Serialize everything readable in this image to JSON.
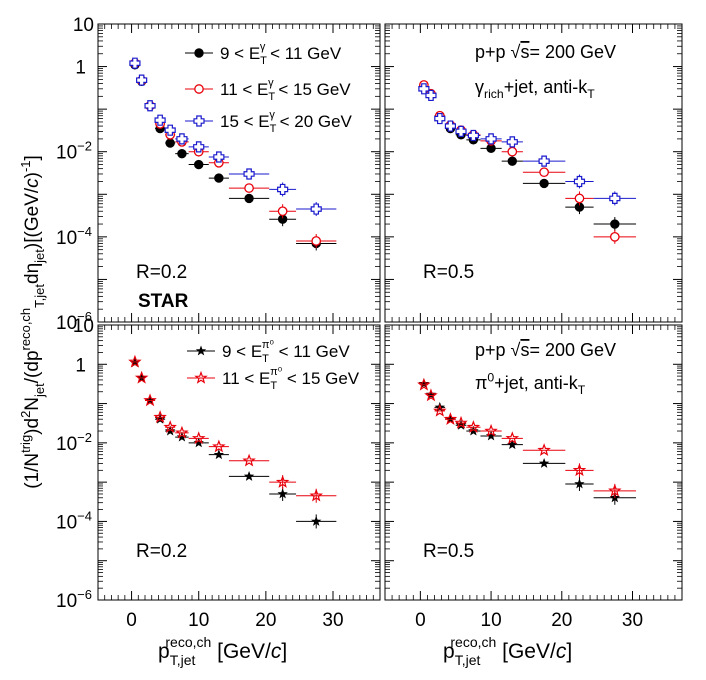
{
  "figure": {
    "ylabel": "(1/N^trig)d²N_jet/(dp_T,jet^reco,ch dη_jet)[(GeV/c)⁻¹]",
    "xlabel": "p_T,jet^reco,ch [GeV/c]",
    "star_label": "STAR",
    "colors": {
      "black": "#000000",
      "red": "#e8000b",
      "blue": "#1a1acd"
    }
  },
  "chart_data": [
    {
      "type": "scatter",
      "panel": "top-left",
      "annotation": "R=0.2",
      "legend_position": "top-right",
      "xlim": [
        -5,
        37
      ],
      "ylim": [
        1e-06,
        10
      ],
      "yscale": "log",
      "series": [
        {
          "name": "9 < E_T^γ < 11 GeV",
          "marker": "circle-filled",
          "color": "#000000",
          "x": [
            0.5,
            1.5,
            2.75,
            4.25,
            5.75,
            7.5,
            10.0,
            13.0,
            17.5,
            22.5,
            27.5
          ],
          "y": [
            1.1,
            0.45,
            0.12,
            0.035,
            0.016,
            0.009,
            0.005,
            0.0024,
            0.0008,
            0.00026,
            7e-05
          ]
        },
        {
          "name": "11 < E_T^γ < 15 GeV",
          "marker": "circle-open",
          "color": "#e8000b",
          "x": [
            0.5,
            1.5,
            2.75,
            4.25,
            5.75,
            7.5,
            10.0,
            13.0,
            17.5,
            22.5,
            27.5
          ],
          "y": [
            1.2,
            0.47,
            0.12,
            0.045,
            0.025,
            0.017,
            0.01,
            0.0055,
            0.0014,
            0.0004,
            8e-05
          ]
        },
        {
          "name": "15 < E_T^γ < 20 GeV",
          "marker": "cross-open",
          "color": "#1a1acd",
          "x": [
            0.5,
            1.5,
            2.75,
            4.25,
            5.75,
            7.5,
            10.0,
            13.0,
            17.5,
            22.5,
            27.5
          ],
          "y": [
            1.2,
            0.48,
            0.12,
            0.055,
            0.032,
            0.02,
            0.013,
            0.0075,
            0.003,
            0.0013,
            0.00045
          ]
        }
      ]
    },
    {
      "type": "scatter",
      "panel": "top-right",
      "title_line1": "p+p √s= 200 GeV",
      "title_line2": "γ_rich+jet, anti-k_T",
      "annotation": "R=0.5",
      "xlim": [
        -5,
        37
      ],
      "ylim": [
        1e-06,
        10
      ],
      "yscale": "log",
      "series": [
        {
          "name": "9 < E_T^γ < 11 GeV",
          "marker": "circle-filled",
          "color": "#000000",
          "x": [
            0.5,
            1.5,
            2.75,
            4.25,
            5.75,
            7.5,
            10.0,
            13.0,
            17.5,
            22.5,
            27.5
          ],
          "y": [
            0.35,
            0.22,
            0.065,
            0.035,
            0.025,
            0.019,
            0.012,
            0.006,
            0.0018,
            0.0005,
            0.0002
          ]
        },
        {
          "name": "11 < E_T^γ < 15 GeV",
          "marker": "circle-open",
          "color": "#e8000b",
          "x": [
            0.5,
            1.5,
            2.75,
            4.25,
            5.75,
            7.5,
            10.0,
            13.0,
            17.5,
            22.5,
            27.5
          ],
          "y": [
            0.37,
            0.23,
            0.07,
            0.042,
            0.032,
            0.025,
            0.018,
            0.01,
            0.0033,
            0.0008,
            0.0001
          ]
        },
        {
          "name": "15 < E_T^γ < 20 GeV",
          "marker": "cross-open",
          "color": "#1a1acd",
          "x": [
            0.5,
            1.5,
            2.75,
            4.25,
            5.75,
            7.5,
            10.0,
            13.0,
            17.5,
            22.5,
            27.5
          ],
          "y": [
            0.3,
            0.21,
            0.06,
            0.04,
            0.03,
            0.024,
            0.02,
            0.017,
            0.006,
            0.002,
            0.0008
          ]
        }
      ]
    },
    {
      "type": "scatter",
      "panel": "bottom-left",
      "annotation": "R=0.2",
      "legend_position": "top-right",
      "xlim": [
        -5,
        37
      ],
      "ylim": [
        1e-06,
        10
      ],
      "yscale": "log",
      "series": [
        {
          "name": "9 < E_T^π⁰ < 11 GeV",
          "marker": "star-filled",
          "color": "#000000",
          "x": [
            0.5,
            1.5,
            2.75,
            4.25,
            5.75,
            7.5,
            10.0,
            13.0,
            17.5,
            22.5,
            27.5
          ],
          "y": [
            1.1,
            0.45,
            0.12,
            0.04,
            0.02,
            0.014,
            0.01,
            0.005,
            0.0014,
            0.0005,
            0.0001
          ]
        },
        {
          "name": "11 < E_T^π⁰ < 15 GeV",
          "marker": "star-open",
          "color": "#e8000b",
          "x": [
            0.5,
            1.5,
            2.75,
            4.25,
            5.75,
            7.5,
            10.0,
            13.0,
            17.5,
            22.5,
            27.5
          ],
          "y": [
            1.15,
            0.45,
            0.12,
            0.045,
            0.025,
            0.018,
            0.013,
            0.008,
            0.0035,
            0.001,
            0.00045
          ]
        }
      ]
    },
    {
      "type": "scatter",
      "panel": "bottom-right",
      "title_line1": "p+p √s= 200 GeV",
      "title_line2": "π⁰+jet, anti-k_T",
      "annotation": "R=0.5",
      "xlim": [
        -5,
        37
      ],
      "ylim": [
        1e-06,
        10
      ],
      "yscale": "log",
      "series": [
        {
          "name": "9 < E_T^π⁰ < 11 GeV",
          "marker": "star-filled",
          "color": "#000000",
          "x": [
            0.5,
            1.5,
            2.75,
            4.25,
            5.75,
            7.5,
            10.0,
            13.0,
            17.5,
            22.5,
            27.5
          ],
          "y": [
            0.32,
            0.17,
            0.08,
            0.04,
            0.028,
            0.02,
            0.015,
            0.009,
            0.003,
            0.0009,
            0.0004
          ]
        },
        {
          "name": "11 < E_T^π⁰ < 15 GeV",
          "marker": "star-open",
          "color": "#e8000b",
          "x": [
            0.5,
            1.5,
            2.75,
            4.25,
            5.75,
            7.5,
            10.0,
            13.0,
            17.5,
            22.5,
            27.5
          ],
          "y": [
            0.3,
            0.16,
            0.065,
            0.04,
            0.032,
            0.025,
            0.02,
            0.013,
            0.0065,
            0.002,
            0.0006
          ]
        }
      ]
    }
  ]
}
